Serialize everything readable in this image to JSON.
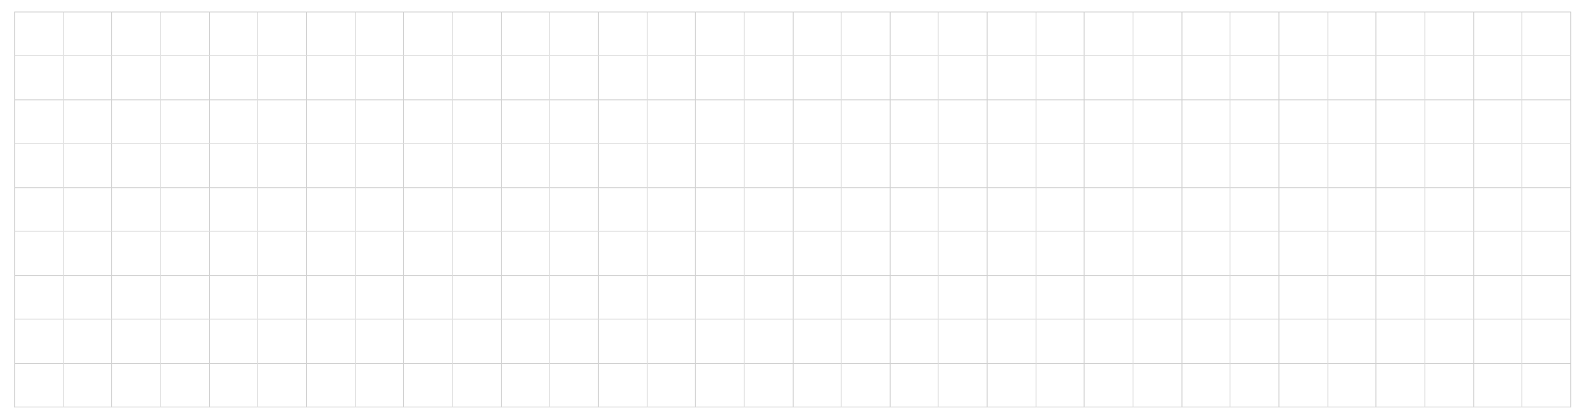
{
  "grid": {
    "columns": 32,
    "rows": 9,
    "line_color": "#e2e2e2",
    "major_line_color": "#d0d0d0",
    "background": "#ffffff"
  }
}
